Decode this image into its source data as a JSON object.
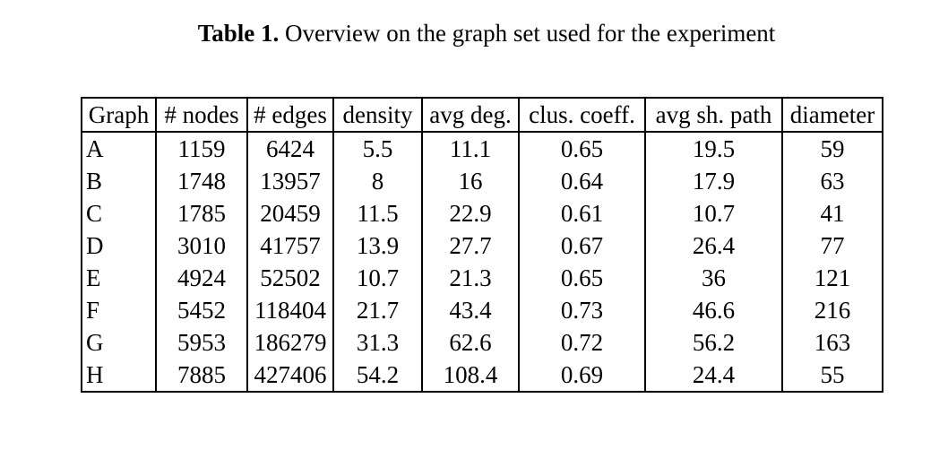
{
  "caption": {
    "label": "Table 1.",
    "text": "Overview on the graph set used for the experiment"
  },
  "table": {
    "headers": [
      "Graph",
      "# nodes",
      "# edges",
      "density",
      "avg deg.",
      "clus. coeff.",
      "avg sh. path",
      "diameter"
    ],
    "rows": [
      [
        "A",
        "1159",
        "6424",
        "5.5",
        "11.1",
        "0.65",
        "19.5",
        "59"
      ],
      [
        "B",
        "1748",
        "13957",
        "8",
        "16",
        "0.64",
        "17.9",
        "63"
      ],
      [
        "C",
        "1785",
        "20459",
        "11.5",
        "22.9",
        "0.61",
        "10.7",
        "41"
      ],
      [
        "D",
        "3010",
        "41757",
        "13.9",
        "27.7",
        "0.67",
        "26.4",
        "77"
      ],
      [
        "E",
        "4924",
        "52502",
        "10.7",
        "21.3",
        "0.65",
        "36",
        "121"
      ],
      [
        "F",
        "5452",
        "118404",
        "21.7",
        "43.4",
        "0.73",
        "46.6",
        "216"
      ],
      [
        "G",
        "5953",
        "186279",
        "31.3",
        "62.6",
        "0.72",
        "56.2",
        "163"
      ],
      [
        "H",
        "7885",
        "427406",
        "54.2",
        "108.4",
        "0.69",
        "24.4",
        "55"
      ]
    ]
  }
}
